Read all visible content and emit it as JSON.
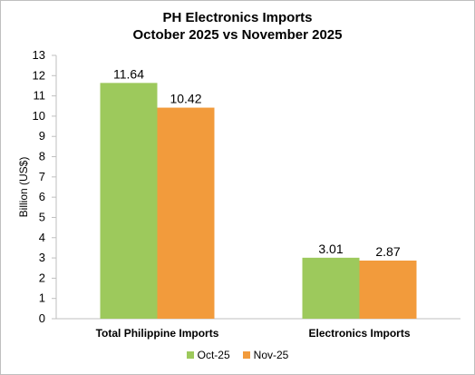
{
  "chart_data": {
    "type": "bar",
    "title": "PH Electronics Imports",
    "subtitle": "October 2025 vs November 2025",
    "ylabel": "Billion (US$)",
    "xlabel": "",
    "ylim": [
      0,
      13
    ],
    "yticks": [
      0,
      1,
      2,
      3,
      4,
      5,
      6,
      7,
      8,
      9,
      10,
      11,
      12,
      13
    ],
    "categories": [
      "Total Philippine Imports",
      "Electronics Imports"
    ],
    "series": [
      {
        "name": "Oct-25",
        "values": [
          11.64,
          3.01
        ],
        "labels": [
          "11.64",
          "3.01"
        ],
        "color": "#9dc95c"
      },
      {
        "name": "Nov-25",
        "values": [
          10.42,
          2.87
        ],
        "labels": [
          "10.42",
          "2.87"
        ],
        "color": "#f29b3c"
      }
    ],
    "grid": false,
    "legend_position": "bottom"
  }
}
